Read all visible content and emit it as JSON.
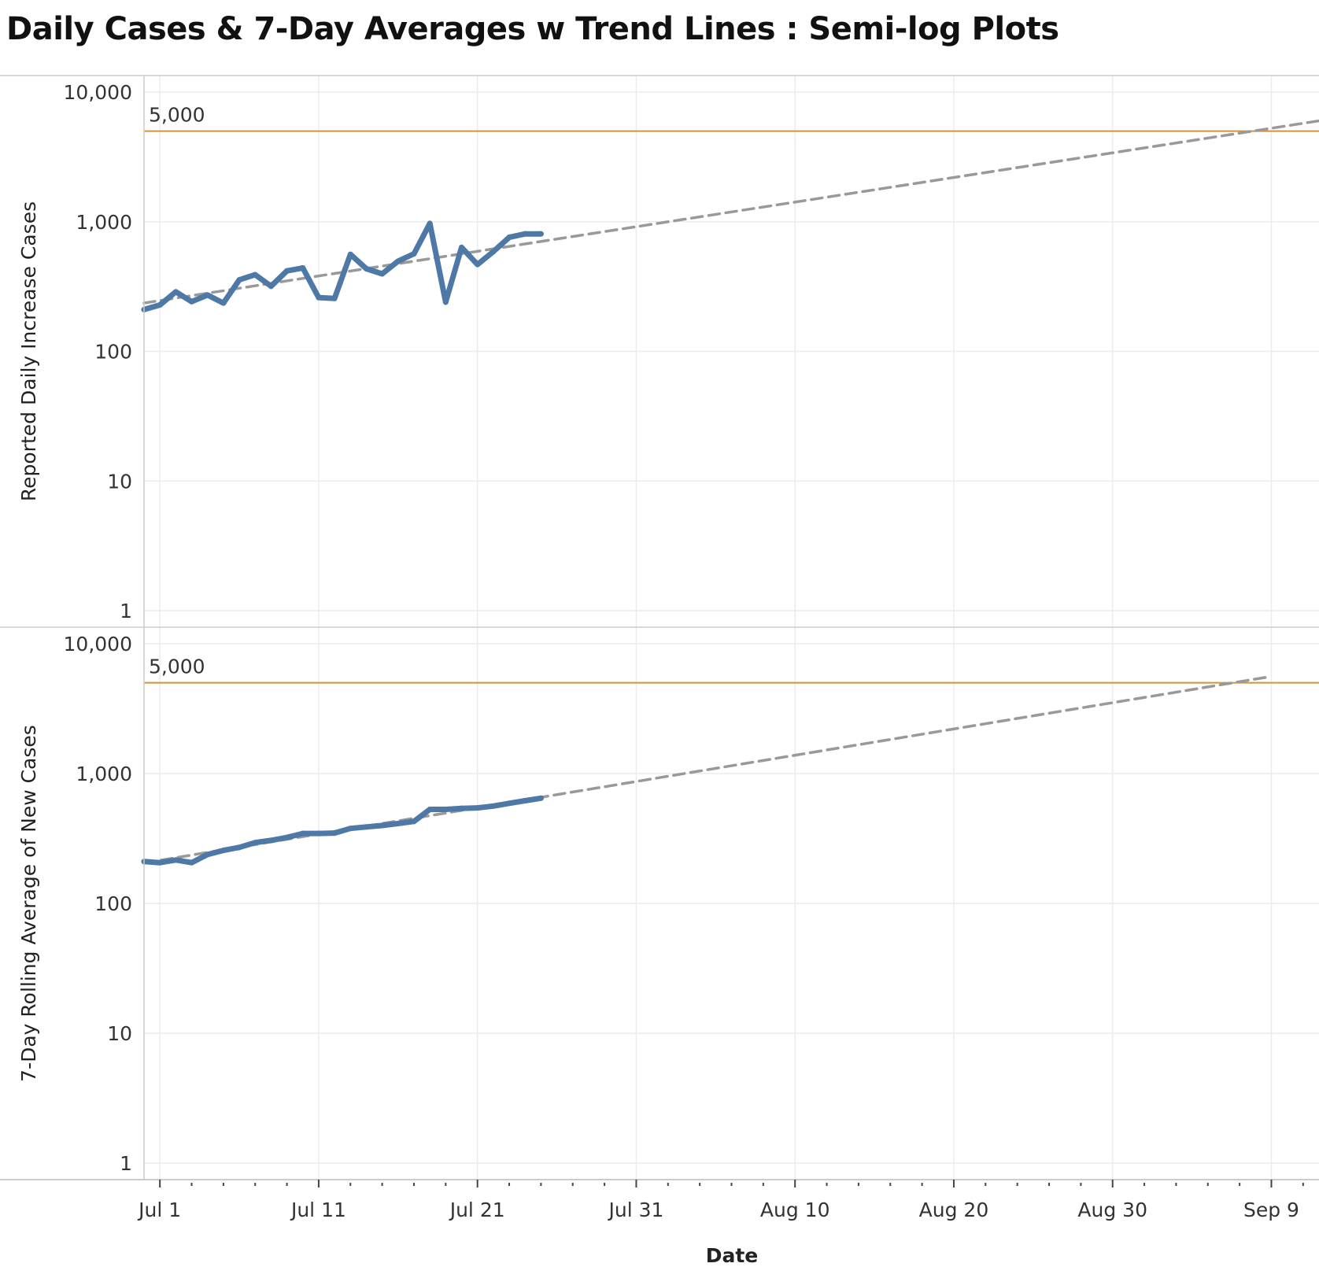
{
  "title": "Daily Cases & 7-Day Averages w Trend Lines : Semi-log Plots",
  "chart_data": [
    {
      "type": "line",
      "ylabel": "Reported Daily Increase Cases",
      "xlabel": "Date",
      "y_scale": "log",
      "ylim": [
        1,
        10000
      ],
      "y_ticks": [
        1,
        10,
        100,
        1000,
        10000
      ],
      "y_tick_labels": [
        "1",
        "10",
        "100",
        "1,000",
        "10,000"
      ],
      "x_range": [
        "2020-06-30",
        "2020-09-12"
      ],
      "x_ticks": [
        "2020-07-01",
        "2020-07-11",
        "2020-07-21",
        "2020-07-31",
        "2020-08-10",
        "2020-08-20",
        "2020-08-30",
        "2020-09-09"
      ],
      "x_tick_labels": [
        "Jul 1",
        "Jul 11",
        "Jul 21",
        "Jul 31",
        "Aug 10",
        "Aug 20",
        "Aug 30",
        "Sep 9"
      ],
      "grid": true,
      "reference_line": {
        "value": 5000,
        "label": "5,000",
        "color": "#d4923a"
      },
      "series": [
        {
          "color": "#4e79a7",
          "x": [
            "2020-06-30",
            "2020-07-01",
            "2020-07-02",
            "2020-07-03",
            "2020-07-04",
            "2020-07-05",
            "2020-07-06",
            "2020-07-07",
            "2020-07-08",
            "2020-07-09",
            "2020-07-10",
            "2020-07-11",
            "2020-07-12",
            "2020-07-13",
            "2020-07-14",
            "2020-07-15",
            "2020-07-16",
            "2020-07-17",
            "2020-07-18",
            "2020-07-19",
            "2020-07-20",
            "2020-07-21",
            "2020-07-22",
            "2020-07-23",
            "2020-07-24",
            "2020-07-25"
          ],
          "y": [
            210,
            228,
            288,
            242,
            272,
            236,
            356,
            390,
            318,
            418,
            440,
            260,
            256,
            560,
            434,
            396,
            496,
            566,
            970,
            240,
            634,
            468,
            588,
            758,
            806,
            806
          ]
        }
      ],
      "trend": {
        "style": "dashed",
        "color": "#999999",
        "x": [
          "2020-06-30",
          "2020-09-12"
        ],
        "y": [
          236,
          6000
        ]
      }
    },
    {
      "type": "line",
      "ylabel": "7-Day Rolling  Average of New Cases",
      "xlabel": "Date",
      "y_scale": "log",
      "ylim": [
        1,
        10000
      ],
      "y_ticks": [
        1,
        10,
        100,
        1000,
        10000
      ],
      "y_tick_labels": [
        "1",
        "10",
        "100",
        "1,000",
        "10,000"
      ],
      "x_range": [
        "2020-06-30",
        "2020-09-12"
      ],
      "x_ticks": [
        "2020-07-01",
        "2020-07-11",
        "2020-07-21",
        "2020-07-31",
        "2020-08-10",
        "2020-08-20",
        "2020-08-30",
        "2020-09-09"
      ],
      "x_tick_labels": [
        "Jul 1",
        "Jul 11",
        "Jul 21",
        "Jul 31",
        "Aug 10",
        "Aug 20",
        "Aug 30",
        "Sep 9"
      ],
      "grid": true,
      "reference_line": {
        "value": 5000,
        "label": "5,000",
        "color": "#d4923a"
      },
      "series": [
        {
          "color": "#4e79a7",
          "x": [
            "2020-06-30",
            "2020-07-01",
            "2020-07-02",
            "2020-07-03",
            "2020-07-04",
            "2020-07-05",
            "2020-07-06",
            "2020-07-07",
            "2020-07-08",
            "2020-07-09",
            "2020-07-10",
            "2020-07-11",
            "2020-07-12",
            "2020-07-13",
            "2020-07-14",
            "2020-07-15",
            "2020-07-16",
            "2020-07-17",
            "2020-07-18",
            "2020-07-19",
            "2020-07-20",
            "2020-07-21",
            "2020-07-22",
            "2020-07-23",
            "2020-07-24",
            "2020-07-25"
          ],
          "y": [
            210,
            206,
            216,
            206,
            238,
            256,
            270,
            294,
            306,
            322,
            346,
            346,
            348,
            378,
            388,
            398,
            412,
            428,
            530,
            530,
            540,
            544,
            562,
            590,
            618,
            646
          ]
        }
      ],
      "trend": {
        "style": "dashed",
        "color": "#999999",
        "x": [
          "2020-06-30",
          "2020-09-09"
        ],
        "y": [
          205,
          5600
        ]
      }
    }
  ]
}
